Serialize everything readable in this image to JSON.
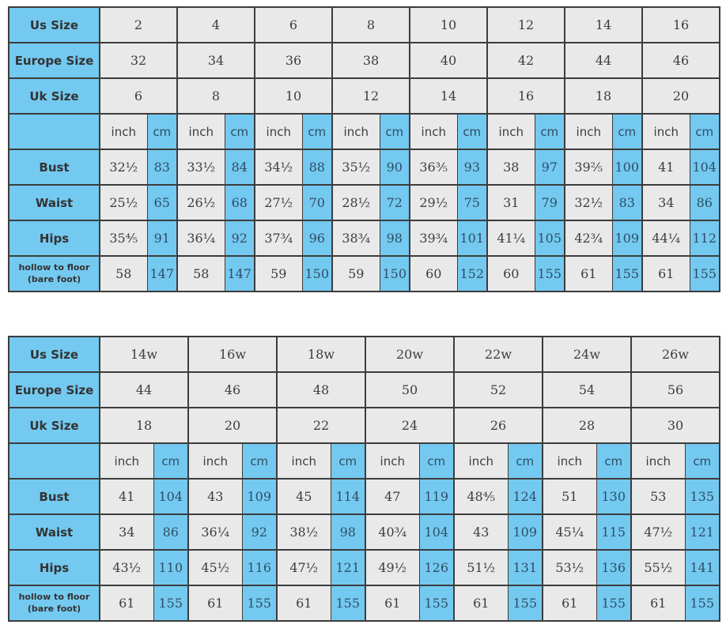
{
  "colors": {
    "header_blue": "#74C9F0",
    "cell_gray": "#E9E9E9",
    "border": "#3C3C3C",
    "text_dark": "#3D3D3D",
    "text_blue_cell": "#2E4E66"
  },
  "unit_labels": {
    "inch": "inch",
    "cm": "cm"
  },
  "chart_data": [
    {
      "type": "table",
      "id": "standard-sizes",
      "size_rows": [
        {
          "label": "Us Size",
          "values": [
            "2",
            "4",
            "6",
            "8",
            "10",
            "12",
            "14",
            "16"
          ]
        },
        {
          "label": "Europe Size",
          "values": [
            "32",
            "34",
            "36",
            "38",
            "40",
            "42",
            "44",
            "46"
          ]
        },
        {
          "label": "Uk Size",
          "values": [
            "6",
            "8",
            "10",
            "12",
            "14",
            "16",
            "18",
            "20"
          ]
        }
      ],
      "measure_rows": [
        {
          "label_lines": [
            "Bust"
          ],
          "small": false,
          "pairs": [
            [
              "32½",
              "83"
            ],
            [
              "33½",
              "84"
            ],
            [
              "34½",
              "88"
            ],
            [
              "35½",
              "90"
            ],
            [
              "36⅗",
              "93"
            ],
            [
              "38",
              "97"
            ],
            [
              "39⅖",
              "100"
            ],
            [
              "41",
              "104"
            ]
          ]
        },
        {
          "label_lines": [
            "Waist"
          ],
          "small": false,
          "pairs": [
            [
              "25½",
              "65"
            ],
            [
              "26½",
              "68"
            ],
            [
              "27½",
              "70"
            ],
            [
              "28½",
              "72"
            ],
            [
              "29½",
              "75"
            ],
            [
              "31",
              "79"
            ],
            [
              "32½",
              "83"
            ],
            [
              "34",
              "86"
            ]
          ]
        },
        {
          "label_lines": [
            "Hips"
          ],
          "small": false,
          "pairs": [
            [
              "35⅘",
              "91"
            ],
            [
              "36¼",
              "92"
            ],
            [
              "37¾",
              "96"
            ],
            [
              "38¾",
              "98"
            ],
            [
              "39¾",
              "101"
            ],
            [
              "41¼",
              "105"
            ],
            [
              "42¾",
              "109"
            ],
            [
              "44¼",
              "112"
            ]
          ]
        },
        {
          "label_lines": [
            "hollow to floor",
            "(bare foot)"
          ],
          "small": true,
          "pairs": [
            [
              "58",
              "147"
            ],
            [
              "58",
              "147"
            ],
            [
              "59",
              "150"
            ],
            [
              "59",
              "150"
            ],
            [
              "60",
              "152"
            ],
            [
              "60",
              "155"
            ],
            [
              "61",
              "155"
            ],
            [
              "61",
              "155"
            ]
          ]
        }
      ]
    },
    {
      "type": "table",
      "id": "plus-sizes",
      "size_rows": [
        {
          "label": "Us Size",
          "values": [
            "14w",
            "16w",
            "18w",
            "20w",
            "22w",
            "24w",
            "26w"
          ]
        },
        {
          "label": "Europe Size",
          "values": [
            "44",
            "46",
            "48",
            "50",
            "52",
            "54",
            "56"
          ]
        },
        {
          "label": "Uk Size",
          "values": [
            "18",
            "20",
            "22",
            "24",
            "26",
            "28",
            "30"
          ]
        }
      ],
      "measure_rows": [
        {
          "label_lines": [
            "Bust"
          ],
          "small": false,
          "pairs": [
            [
              "41",
              "104"
            ],
            [
              "43",
              "109"
            ],
            [
              "45",
              "114"
            ],
            [
              "47",
              "119"
            ],
            [
              "48⅘",
              "124"
            ],
            [
              "51",
              "130"
            ],
            [
              "53",
              "135"
            ]
          ]
        },
        {
          "label_lines": [
            "Waist"
          ],
          "small": false,
          "pairs": [
            [
              "34",
              "86"
            ],
            [
              "36¼",
              "92"
            ],
            [
              "38½",
              "98"
            ],
            [
              "40¾",
              "104"
            ],
            [
              "43",
              "109"
            ],
            [
              "45¼",
              "115"
            ],
            [
              "47½",
              "121"
            ]
          ]
        },
        {
          "label_lines": [
            "Hips"
          ],
          "small": false,
          "pairs": [
            [
              "43½",
              "110"
            ],
            [
              "45½",
              "116"
            ],
            [
              "47½",
              "121"
            ],
            [
              "49½",
              "126"
            ],
            [
              "51½",
              "131"
            ],
            [
              "53½",
              "136"
            ],
            [
              "55½",
              "141"
            ]
          ]
        },
        {
          "label_lines": [
            "hollow to floor",
            "(bare foot)"
          ],
          "small": true,
          "pairs": [
            [
              "61",
              "155"
            ],
            [
              "61",
              "155"
            ],
            [
              "61",
              "155"
            ],
            [
              "61",
              "155"
            ],
            [
              "61",
              "155"
            ],
            [
              "61",
              "155"
            ],
            [
              "61",
              "155"
            ]
          ]
        }
      ]
    }
  ]
}
